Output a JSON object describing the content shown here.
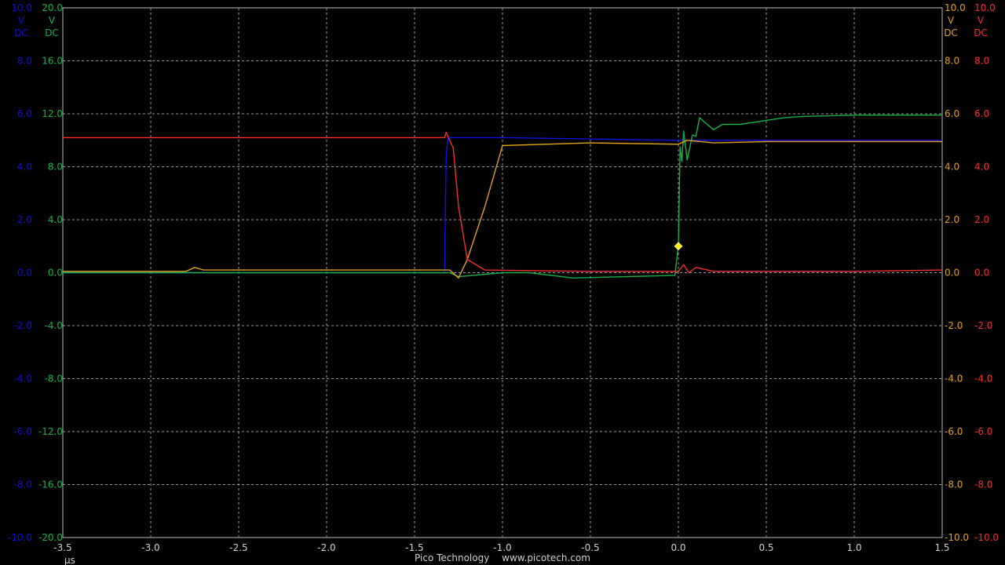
{
  "footer": {
    "brand": "Pico Technology",
    "url": "www.picotech.com"
  },
  "chart_data": {
    "type": "line",
    "title": "",
    "xlabel": "µs",
    "xlim": [
      -3.5,
      1.5
    ],
    "x_ticks": [
      "-3.5",
      "-3.0",
      "-2.5",
      "-2.0",
      "-1.5",
      "-1.0",
      "-0.5",
      "0.0",
      "0.5",
      "1.0",
      "1.5"
    ],
    "grid": true,
    "background": "#000000",
    "axes": [
      {
        "id": "A",
        "side": "left",
        "color": "#1010e0",
        "range": [
          -10,
          10
        ],
        "ticks": [
          "10.0",
          "8.0",
          "6.0",
          "4.0",
          "2.0",
          "0.0",
          "-2.0",
          "-4.0",
          "-6.0",
          "-8.0",
          "-10.0"
        ],
        "unit": [
          "V",
          "DC"
        ]
      },
      {
        "id": "B",
        "side": "left",
        "color": "#19b04b",
        "range": [
          -20,
          20
        ],
        "ticks": [
          "20.0",
          "16.0",
          "12.0",
          "8.0",
          "4.0",
          "0.0",
          "-4.0",
          "-8.0",
          "-12.0",
          "-16.0",
          "-20.0"
        ],
        "unit": [
          "V",
          "DC"
        ]
      },
      {
        "id": "C",
        "side": "right",
        "color": "#e0a020",
        "range": [
          -10,
          10
        ],
        "ticks": [
          "10.0",
          "8.0",
          "6.0",
          "4.0",
          "2.0",
          "0.0",
          "-2.0",
          "-4.0",
          "-6.0",
          "-8.0",
          "-10.0"
        ],
        "unit": [
          "V",
          "DC"
        ]
      },
      {
        "id": "D",
        "side": "right",
        "color": "#f03030",
        "range": [
          -10,
          10
        ],
        "ticks": [
          "10.0",
          "8.0",
          "6.0",
          "4.0",
          "2.0",
          "0.0",
          "-2.0",
          "-4.0",
          "-6.0",
          "-8.0",
          "-10.0"
        ],
        "unit": [
          "V",
          "DC"
        ]
      }
    ],
    "series": [
      {
        "axis": "A",
        "color": "#1010e0",
        "points": [
          [
            -3.5,
            0.0
          ],
          [
            -1.33,
            0.0
          ],
          [
            -1.32,
            4.5
          ],
          [
            -1.31,
            5.05
          ],
          [
            -1.3,
            5.1
          ],
          [
            -1.0,
            5.1
          ],
          [
            -0.5,
            5.05
          ],
          [
            0.0,
            5.0
          ],
          [
            0.5,
            5.0
          ],
          [
            1.0,
            5.0
          ],
          [
            1.5,
            5.0
          ]
        ]
      },
      {
        "axis": "B",
        "color": "#19b04b",
        "points": [
          [
            -3.5,
            0.0
          ],
          [
            -1.3,
            0.0
          ],
          [
            -1.25,
            -0.3
          ],
          [
            -1.0,
            0.0
          ],
          [
            -0.85,
            0.0
          ],
          [
            -0.6,
            -0.4
          ],
          [
            -0.3,
            -0.3
          ],
          [
            -0.02,
            -0.2
          ],
          [
            0.0,
            2.0
          ],
          [
            0.01,
            9.5
          ],
          [
            0.02,
            8.4
          ],
          [
            0.03,
            10.7
          ],
          [
            0.05,
            8.5
          ],
          [
            0.08,
            10.4
          ],
          [
            0.1,
            10.3
          ],
          [
            0.12,
            11.7
          ],
          [
            0.2,
            10.8
          ],
          [
            0.25,
            11.2
          ],
          [
            0.35,
            11.2
          ],
          [
            0.5,
            11.5
          ],
          [
            0.6,
            11.7
          ],
          [
            0.7,
            11.8
          ],
          [
            1.0,
            11.9
          ],
          [
            1.5,
            11.9
          ]
        ]
      },
      {
        "axis": "C",
        "color": "#e0a020",
        "points": [
          [
            -3.5,
            0.05
          ],
          [
            -2.8,
            0.05
          ],
          [
            -2.75,
            0.2
          ],
          [
            -2.7,
            0.1
          ],
          [
            -1.3,
            0.1
          ],
          [
            -1.25,
            -0.2
          ],
          [
            -1.2,
            0.5
          ],
          [
            -1.1,
            2.5
          ],
          [
            -1.0,
            4.8
          ],
          [
            -0.5,
            4.9
          ],
          [
            0.0,
            4.85
          ],
          [
            0.05,
            5.0
          ],
          [
            0.2,
            4.9
          ],
          [
            0.5,
            4.95
          ],
          [
            1.0,
            4.95
          ],
          [
            1.5,
            4.95
          ]
        ]
      },
      {
        "axis": "D",
        "color": "#f03030",
        "points": [
          [
            -3.5,
            5.1
          ],
          [
            -1.33,
            5.1
          ],
          [
            -1.32,
            5.3
          ],
          [
            -1.3,
            5.0
          ],
          [
            -1.28,
            4.7
          ],
          [
            -1.25,
            2.5
          ],
          [
            -1.2,
            0.5
          ],
          [
            -1.1,
            0.1
          ],
          [
            -0.5,
            0.05
          ],
          [
            0.0,
            0.05
          ],
          [
            0.03,
            0.3
          ],
          [
            0.06,
            0.0
          ],
          [
            0.1,
            0.2
          ],
          [
            0.2,
            0.05
          ],
          [
            1.0,
            0.05
          ],
          [
            1.5,
            0.1
          ]
        ]
      }
    ],
    "trigger": {
      "x": 0.0,
      "axis": "A",
      "y": 1.0,
      "color": "#ffee00"
    }
  }
}
